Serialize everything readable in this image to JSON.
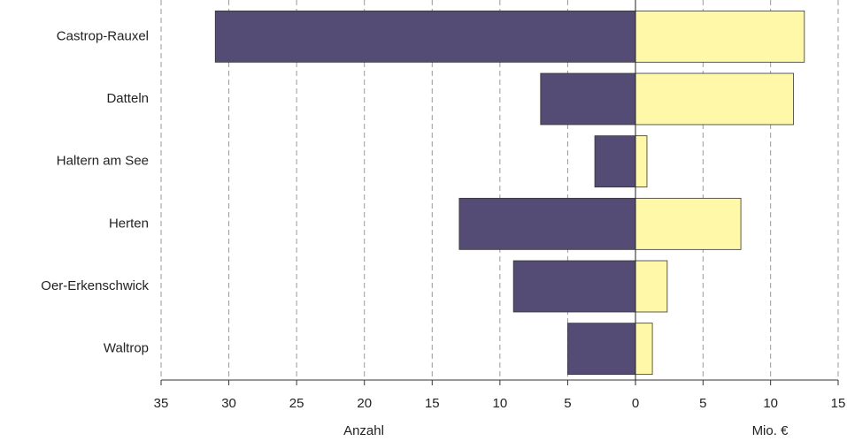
{
  "chart_data": {
    "type": "diverging-bar",
    "categories": [
      "Castrop-Rauxel",
      "Datteln",
      "Haltern am See",
      "Herten",
      "Oer-Erkenschwick",
      "Waltrop"
    ],
    "series": [
      {
        "name": "Anzahl",
        "color": "#554c75",
        "axis": "left",
        "values": [
          31,
          7,
          3,
          13,
          9,
          5
        ]
      },
      {
        "name": "Mio. €",
        "color": "#fff8a8",
        "axis": "right",
        "values": [
          12.5,
          11.7,
          0.85,
          7.8,
          2.35,
          1.25
        ]
      }
    ],
    "left_xlim": [
      35,
      0
    ],
    "left_xticks": [
      35,
      30,
      25,
      20,
      15,
      10,
      5
    ],
    "right_xlim": [
      0,
      15
    ],
    "right_xticks": [
      0,
      5,
      10,
      15
    ],
    "left_xlabel": "Anzahl",
    "right_xlabel": "Mio. €",
    "grid": true
  }
}
